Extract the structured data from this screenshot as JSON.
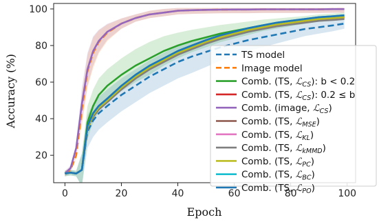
{
  "chart_data": {
    "type": "line",
    "xlabel": "Epoch",
    "ylabel": "Accuracy (%)",
    "xlim": [
      -4,
      103
    ],
    "ylim": [
      5,
      103
    ],
    "xticks": [
      0,
      20,
      40,
      60,
      80,
      100
    ],
    "yticks": [
      20,
      40,
      60,
      80,
      100
    ],
    "grid": false,
    "legend_position": "right",
    "x": [
      0,
      2,
      4,
      6,
      8,
      10,
      12,
      15,
      20,
      25,
      30,
      35,
      40,
      45,
      50,
      55,
      60,
      65,
      70,
      75,
      80,
      85,
      90,
      95,
      99
    ],
    "series": [
      {
        "name": "TS model",
        "style": "dashed",
        "color": "#1f77b4",
        "has_band": true,
        "band_color": "#1f77b4",
        "values": [
          10,
          10.5,
          10,
          12,
          33,
          39,
          43,
          47,
          53,
          58,
          63,
          67,
          71,
          74,
          76.5,
          79,
          81,
          83,
          84.5,
          86,
          87.5,
          89,
          90,
          91,
          92
        ]
      },
      {
        "name": "Image model",
        "style": "dashed",
        "color": "#ff7f0e",
        "has_band": true,
        "band_color": "#ff7f0e",
        "values": [
          10,
          12,
          20,
          45,
          66,
          76,
          82,
          87,
          92,
          95,
          97,
          98,
          99,
          99.3,
          99.5,
          99.6,
          99.7,
          99.7,
          99.8,
          99.8,
          99.8,
          99.8,
          99.8,
          99.9,
          99.9
        ]
      },
      {
        "label_prefix": "Comb. (TS, ",
        "label_math": "CS",
        "label_suffix": "): b < 0.2",
        "style": "solid",
        "color": "#2ca02c",
        "has_band": true,
        "band_color": "#2ca02c",
        "values": [
          10,
          10.5,
          10,
          12,
          38,
          47,
          53,
          58,
          64,
          69,
          73,
          77,
          80,
          82.5,
          84.5,
          86.5,
          88,
          89.5,
          91,
          92,
          93,
          94,
          95,
          95.5,
          96
        ]
      },
      {
        "label_prefix": "Comb. (TS, ",
        "label_math": "CS",
        "label_suffix": "): 0.2 ≤ b",
        "style": "solid",
        "color": "#d62728",
        "has_band": false,
        "values": [
          10,
          10.5,
          10,
          12,
          35,
          42,
          46,
          50,
          56,
          62,
          67,
          71,
          75,
          78.5,
          81.5,
          84,
          86,
          88,
          89.5,
          91,
          92,
          93,
          94,
          94.5,
          95
        ]
      },
      {
        "label_prefix": "Comb. (image, ",
        "label_math": "CS",
        "label_suffix": ")",
        "style": "solid",
        "color": "#9467bd",
        "has_band": true,
        "band_color": "#9467bd",
        "values": [
          10,
          13,
          24,
          48,
          67,
          77,
          82.5,
          87.5,
          92,
          95,
          97,
          98,
          99,
          99.3,
          99.5,
          99.6,
          99.7,
          99.7,
          99.8,
          99.8,
          99.8,
          99.8,
          99.8,
          99.9,
          99.9
        ]
      },
      {
        "label_prefix": "Comb. (TS, ",
        "label_math": "MSE",
        "label_suffix": ")",
        "style": "solid",
        "color": "#8c564b",
        "has_band": false,
        "values": [
          10,
          10.5,
          10,
          12,
          35,
          42,
          46,
          50,
          57,
          63,
          68,
          72,
          76,
          79,
          82,
          84.5,
          86.5,
          88.5,
          90,
          91.5,
          92.5,
          93.5,
          94.5,
          95,
          95.5
        ]
      },
      {
        "label_prefix": "Comb. (TS, ",
        "label_math": "KL",
        "label_suffix": ")",
        "style": "solid",
        "color": "#e377c2",
        "has_band": false,
        "values": [
          10,
          10.5,
          10,
          12,
          35,
          42,
          46,
          50,
          57,
          63,
          68,
          72,
          76,
          79,
          82,
          84.5,
          86.5,
          88.5,
          90,
          91.5,
          92.5,
          93.5,
          94.5,
          95,
          95.5
        ]
      },
      {
        "label_prefix": "Comb. (TS, ",
        "label_math": "kMMD",
        "label_suffix": ")",
        "style": "solid",
        "color": "#7f7f7f",
        "has_band": false,
        "values": [
          10,
          10.5,
          10,
          12,
          35,
          41,
          45,
          49,
          56,
          62,
          67,
          71,
          75,
          78,
          81,
          83.5,
          85.5,
          87.5,
          89,
          90.5,
          91.5,
          92.5,
          93.5,
          94,
          94.5
        ]
      },
      {
        "label_prefix": "Comb. (TS, ",
        "label_math": "PC",
        "label_suffix": ")",
        "style": "solid",
        "color": "#bcbd22",
        "has_band": false,
        "values": [
          10,
          10.5,
          10,
          12,
          35,
          42,
          46,
          50,
          57,
          63,
          68,
          72,
          76,
          79,
          82,
          84.5,
          86.5,
          88.5,
          90,
          91.5,
          92.5,
          93.5,
          94.5,
          95,
          95.5
        ]
      },
      {
        "label_prefix": "Comb. (TS, ",
        "label_math": "BC",
        "label_suffix": ")",
        "style": "solid",
        "color": "#17becf",
        "has_band": false,
        "values": [
          10,
          10.5,
          10,
          12,
          36,
          43,
          47,
          51,
          58,
          64,
          69,
          73,
          77,
          80,
          83,
          85.5,
          87.5,
          89.5,
          91,
          92.5,
          93.5,
          94.5,
          95.5,
          96,
          96.5
        ]
      },
      {
        "label_prefix": "Comb. (TS, ",
        "label_math": "PO",
        "label_suffix": ")",
        "style": "solid",
        "color": "#1f77b4",
        "has_band": false,
        "values": [
          10,
          10.5,
          10,
          12,
          36,
          43,
          47,
          51,
          58,
          64,
          69,
          73,
          77,
          80,
          83,
          85.5,
          87.5,
          89.5,
          91,
          92.5,
          93.5,
          94.5,
          95.5,
          96,
          96.5
        ]
      }
    ]
  }
}
